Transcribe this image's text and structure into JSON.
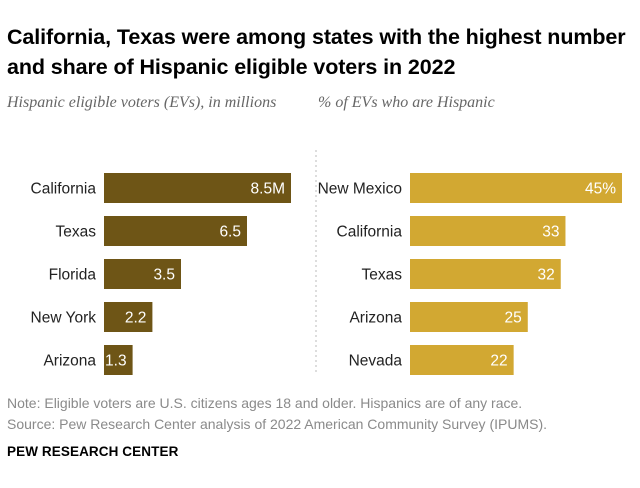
{
  "title": "California, Texas were among states with the highest number and share of Hispanic eligible voters in 2022",
  "note": "Note: Eligible voters are U.S. citizens ages 18 and older. Hispanics are of any race.",
  "source": "Source: Pew Research Center analysis of 2022 American Community Survey (IPUMS).",
  "credit": "PEW RESEARCH CENTER",
  "colors": {
    "left_bar": "#6e5516",
    "right_bar": "#d2a832",
    "bar_label": "#ffffff",
    "category": "#222222",
    "divider": "#bbbbbb"
  },
  "chart_data": [
    {
      "type": "bar",
      "orientation": "horizontal",
      "title": "Hispanic eligible voters (EVs), in millions",
      "categories": [
        "California",
        "Texas",
        "Florida",
        "New York",
        "Arizona"
      ],
      "values": [
        8.5,
        6.5,
        3.5,
        2.2,
        1.3
      ],
      "labels": [
        "8.5M",
        "6.5",
        "3.5",
        "2.2",
        "1.3"
      ],
      "xlim": [
        0,
        8.5
      ],
      "grid": false
    },
    {
      "type": "bar",
      "orientation": "horizontal",
      "title": "% of EVs who are Hispanic",
      "categories": [
        "New Mexico",
        "California",
        "Texas",
        "Arizona",
        "Nevada"
      ],
      "values": [
        45,
        33,
        32,
        25,
        22
      ],
      "labels": [
        "45%",
        "33",
        "32",
        "25",
        "22"
      ],
      "xlim": [
        0,
        45
      ],
      "grid": false
    }
  ]
}
